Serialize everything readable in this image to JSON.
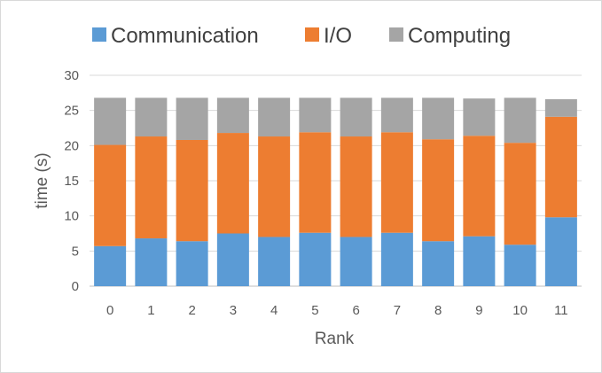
{
  "chart_data": {
    "type": "bar",
    "stacked": true,
    "title": "",
    "xlabel": "Rank",
    "ylabel": "time (s)",
    "categories": [
      "0",
      "1",
      "2",
      "3",
      "4",
      "5",
      "6",
      "7",
      "8",
      "9",
      "10",
      "11"
    ],
    "ylim": [
      0,
      30
    ],
    "yticks": [
      "0",
      "5",
      "10",
      "15",
      "20",
      "25",
      "30"
    ],
    "grid": true,
    "legend_position": "top",
    "series": [
      {
        "name": "Communication",
        "color": "#5b9bd5",
        "values": [
          5.7,
          6.8,
          6.4,
          7.5,
          7.0,
          7.6,
          7.0,
          7.6,
          6.4,
          7.1,
          5.9,
          9.8
        ]
      },
      {
        "name": "I/O",
        "color": "#ed7d31",
        "values": [
          14.4,
          14.5,
          14.4,
          14.3,
          14.3,
          14.3,
          14.3,
          14.3,
          14.5,
          14.3,
          14.5,
          14.3
        ]
      },
      {
        "name": "Computing",
        "color": "#a5a5a5",
        "values": [
          6.7,
          5.5,
          6.0,
          5.0,
          5.5,
          4.9,
          5.5,
          4.9,
          5.9,
          5.3,
          6.4,
          2.5
        ]
      }
    ]
  }
}
